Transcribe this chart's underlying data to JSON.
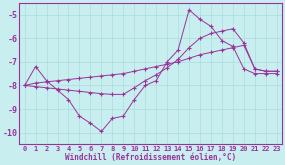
{
  "xlabel": "Windchill (Refroidissement éolien,°C)",
  "background_color": "#c8eef0",
  "line_color": "#993399",
  "grid_color": "#aadddd",
  "xlim": [
    -0.5,
    23.5
  ],
  "ylim": [
    -10.5,
    -4.5
  ],
  "yticks": [
    -10,
    -9,
    -8,
    -7,
    -6,
    -5
  ],
  "xticks": [
    0,
    1,
    2,
    3,
    4,
    5,
    6,
    7,
    8,
    9,
    10,
    11,
    12,
    13,
    14,
    15,
    16,
    17,
    18,
    19,
    20,
    21,
    22,
    23
  ],
  "series": [
    {
      "x": [
        0,
        1,
        2,
        3,
        4,
        5,
        6,
        7,
        8,
        9,
        10,
        11,
        12,
        13,
        14,
        15,
        16,
        17,
        18,
        19,
        20,
        21,
        22,
        23
      ],
      "y": [
        -8.0,
        -7.2,
        -7.8,
        -8.2,
        -8.6,
        -9.3,
        -9.6,
        -9.95,
        -9.4,
        -9.3,
        -8.6,
        -8.0,
        -7.8,
        -7.0,
        -6.5,
        -4.8,
        -5.2,
        -5.5,
        -6.1,
        -6.35,
        -7.3,
        -7.5,
        -7.5,
        -7.5
      ]
    },
    {
      "x": [
        0,
        1,
        2,
        3,
        4,
        5,
        6,
        7,
        8,
        9,
        10,
        11,
        12,
        13,
        14,
        15,
        16,
        17,
        18,
        19,
        20,
        21,
        22,
        23
      ],
      "y": [
        -8.0,
        -7.9,
        -7.85,
        -7.8,
        -7.75,
        -7.7,
        -7.65,
        -7.6,
        -7.55,
        -7.5,
        -7.4,
        -7.3,
        -7.2,
        -7.1,
        -7.0,
        -6.85,
        -6.7,
        -6.6,
        -6.5,
        -6.4,
        -6.3,
        -7.3,
        -7.4,
        -7.4
      ]
    },
    {
      "x": [
        0,
        1,
        2,
        3,
        4,
        5,
        6,
        7,
        8,
        9,
        10,
        11,
        12,
        13,
        14,
        15,
        16,
        17,
        18,
        19,
        20,
        21,
        22,
        23
      ],
      "y": [
        -8.0,
        -8.05,
        -8.1,
        -8.15,
        -8.2,
        -8.25,
        -8.3,
        -8.35,
        -8.38,
        -8.38,
        -8.1,
        -7.8,
        -7.55,
        -7.25,
        -6.9,
        -6.4,
        -6.0,
        -5.8,
        -5.7,
        -5.6,
        -6.2,
        -7.3,
        -7.4,
        -7.4
      ]
    }
  ]
}
